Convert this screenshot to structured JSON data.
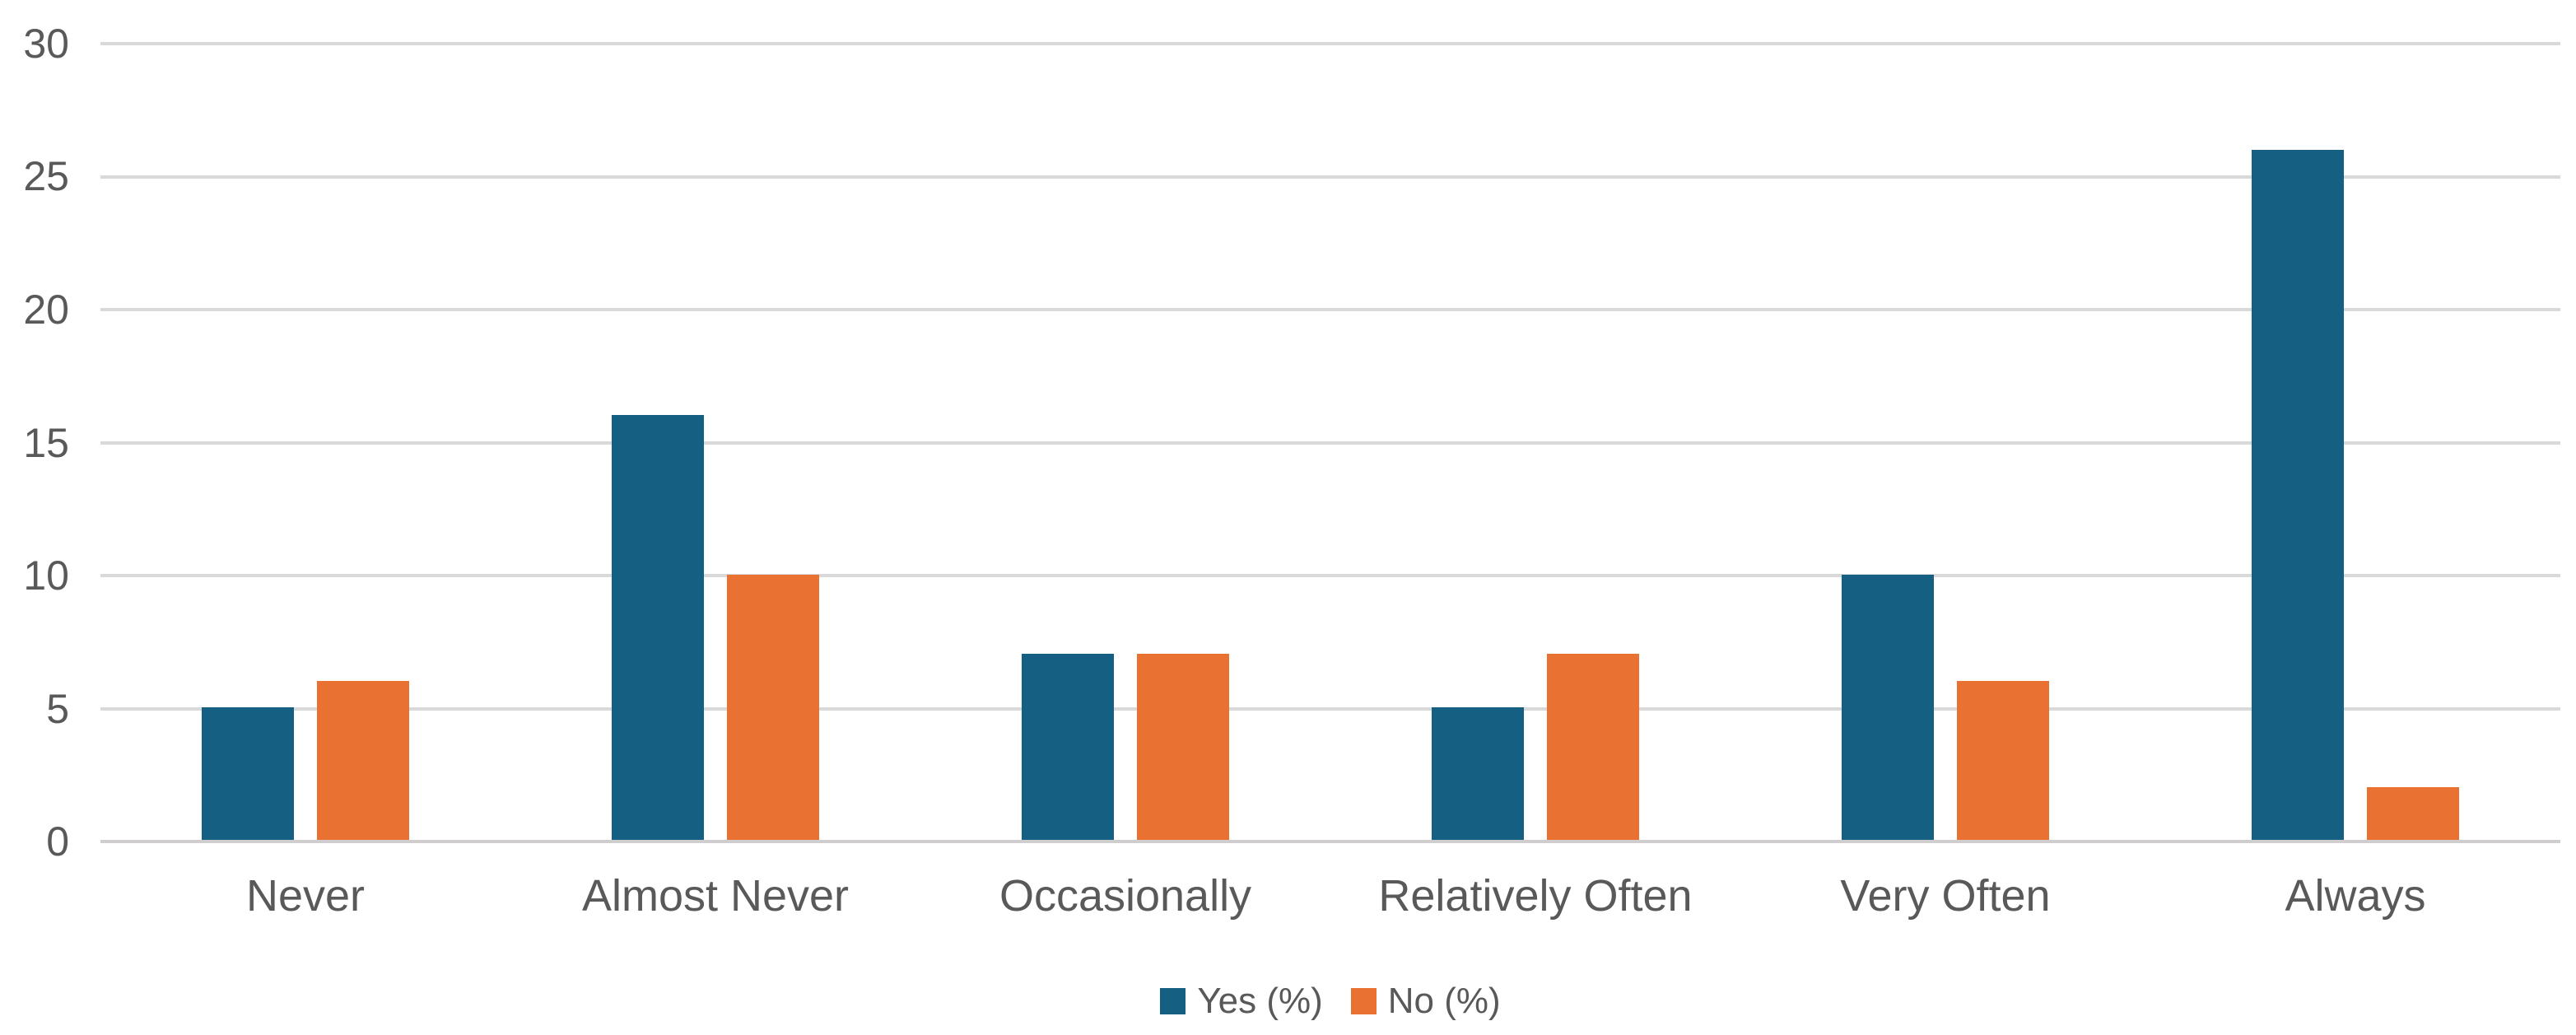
{
  "chart_data": {
    "type": "bar",
    "title": "",
    "xlabel": "",
    "ylabel": "",
    "categories": [
      "Never",
      "Almost Never",
      "Occasionally",
      "Relatively Often",
      "Very Often",
      "Always"
    ],
    "series": [
      {
        "name": "Yes (%)",
        "color": "#156082",
        "values": [
          5,
          16,
          7,
          5,
          10,
          26
        ]
      },
      {
        "name": "No (%)",
        "color": "#E97132",
        "values": [
          6,
          10,
          7,
          7,
          6,
          2
        ]
      }
    ],
    "ylim": [
      0,
      30
    ],
    "yticks": [
      0,
      5,
      10,
      15,
      20,
      25,
      30
    ],
    "grid": true,
    "legend_position": "bottom-center"
  },
  "colors": {
    "series_yes": "#156082",
    "series_no": "#E97132",
    "gridline": "#d9d9d9",
    "axis_line": "#cfcdcd",
    "text": "#595959",
    "background": "#ffffff"
  }
}
